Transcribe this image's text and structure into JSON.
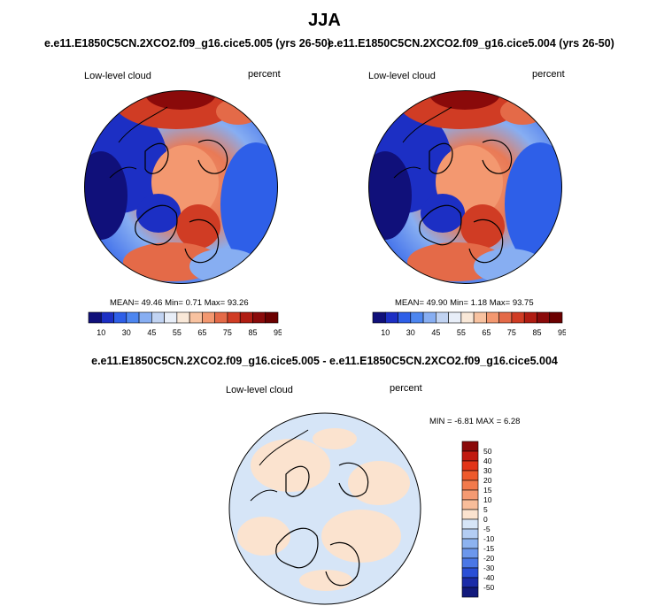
{
  "title": "JJA",
  "panels": [
    {
      "case_title": "e.e11.E1850C5CN.2XCO2.f09_g16.cice5.005 (yrs 26-50)",
      "variable": "Low-level cloud",
      "units": "percent",
      "stats": {
        "mean_label": "MEAN=",
        "mean": "49.46",
        "min_label": "Min=",
        "min": "0.71",
        "max_label": "Max=",
        "max": "93.26"
      }
    },
    {
      "case_title": "e.e11.E1850C5CN.2XCO2.f09_g16.cice5.004 (yrs 26-50)",
      "variable": "Low-level cloud",
      "units": "percent",
      "stats": {
        "mean_label": "MEAN=",
        "mean": "49.90",
        "min_label": "Min=",
        "min": "1.18",
        "max_label": "Max=",
        "max": "93.75"
      }
    }
  ],
  "colorbar_top": {
    "colors": [
      "#10107a",
      "#1c2fc4",
      "#2e5fe8",
      "#4d86f0",
      "#87aef2",
      "#c1d3f2",
      "#e8eef8",
      "#f9e8d8",
      "#f8c2a0",
      "#f39870",
      "#e46a48",
      "#d03c24",
      "#b01c12",
      "#8a0a0a",
      "#6b0000"
    ],
    "tick_labels": [
      "10",
      "30",
      "45",
      "55",
      "65",
      "75",
      "85",
      "95"
    ]
  },
  "difference": {
    "title": "e.e11.E1850C5CN.2XCO2.f09_g16.cice5.005 - e.e11.E1850C5CN.2XCO2.f09_g16.cice5.004",
    "variable": "Low-level cloud",
    "units": "percent",
    "min_label": "MIN =",
    "min": "-6.81",
    "max_label": "MAX =",
    "max": "6.28"
  },
  "colorbar_diff": {
    "levels": [
      "50",
      "40",
      "30",
      "20",
      "15",
      "10",
      "5",
      "0",
      "-5",
      "-10",
      "-15",
      "-20",
      "-30",
      "-40",
      "-50"
    ],
    "colors": [
      "#8a0a0a",
      "#c01a10",
      "#e23418",
      "#ee5a2c",
      "#f27a4c",
      "#f59a72",
      "#f8bd9a",
      "#fbe3cf",
      "#d6e5f7",
      "#b3cdf3",
      "#8db3f0",
      "#6c97ec",
      "#4a77e6",
      "#2a4fd6",
      "#1b2ca8",
      "#121a7c"
    ]
  }
}
